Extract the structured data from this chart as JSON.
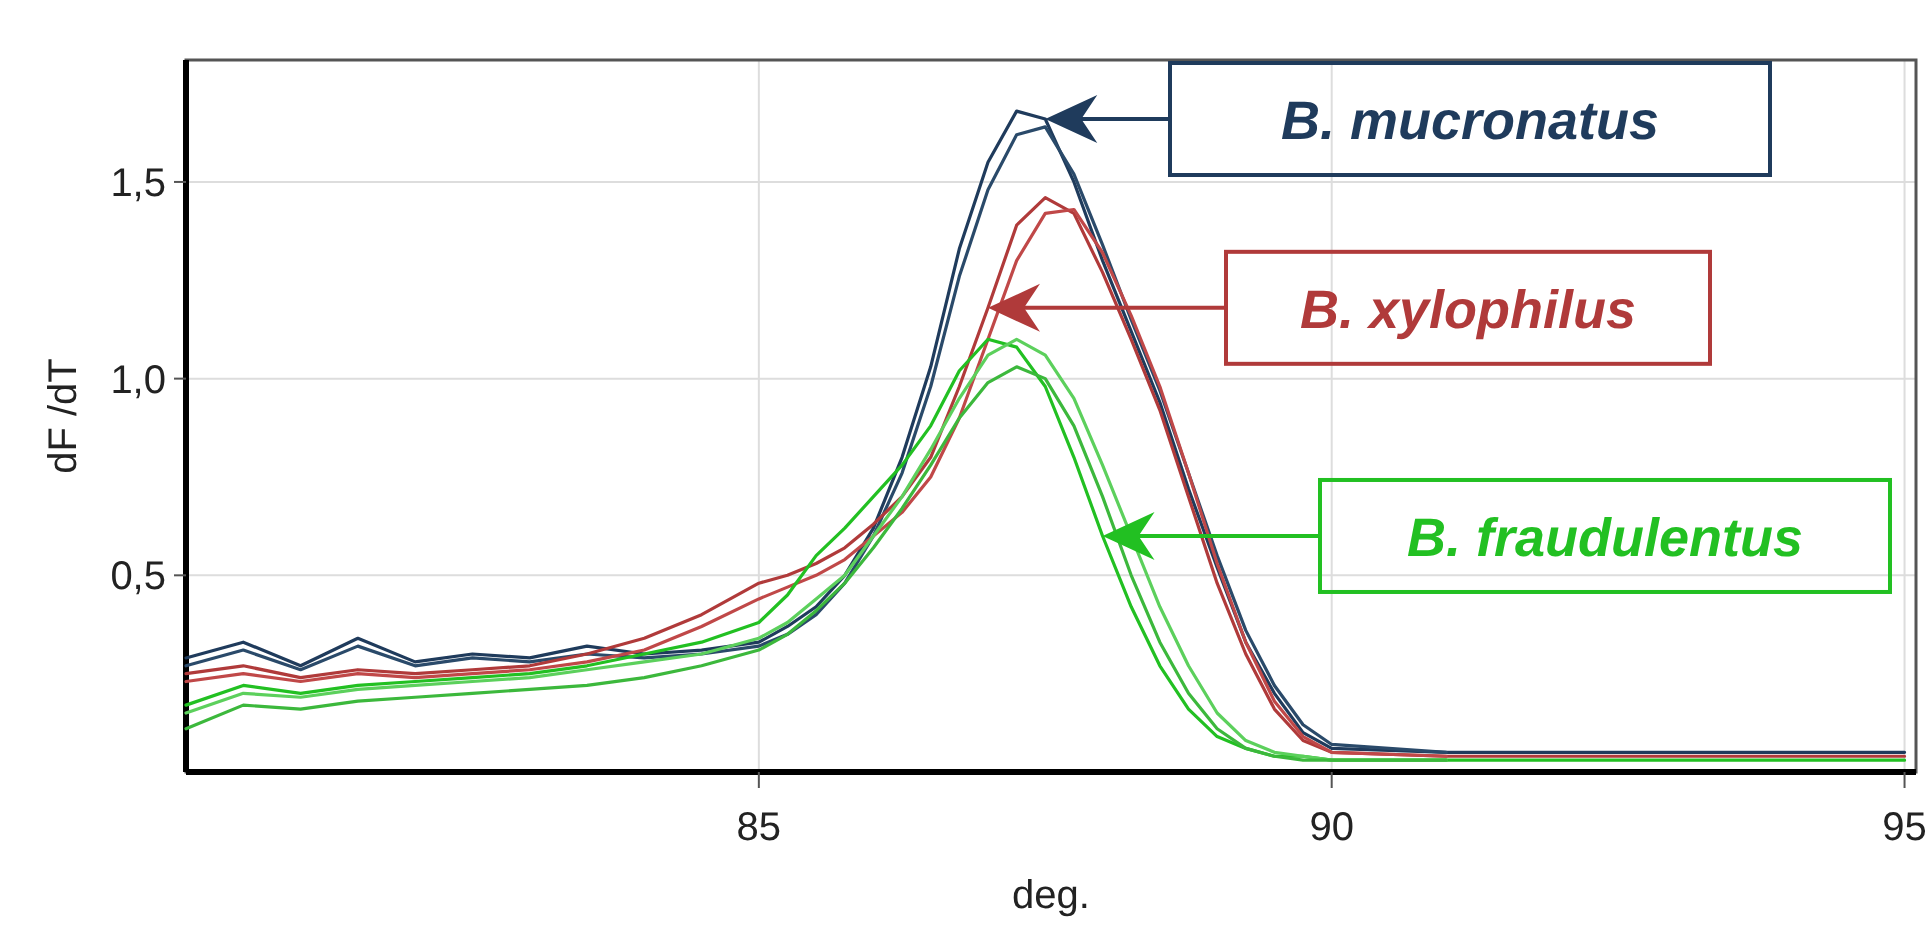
{
  "chart_data": {
    "type": "line",
    "xlabel": "deg.",
    "ylabel": "dF /dT",
    "xlim": [
      80,
      95.1
    ],
    "ylim": [
      0,
      1.81
    ],
    "xticks": [
      85,
      90,
      95
    ],
    "yticks": [
      {
        "value": 0.5,
        "label": "0,5"
      },
      {
        "value": 1.0,
        "label": "1,0"
      },
      {
        "value": 1.5,
        "label": "1,5"
      }
    ],
    "grid": true,
    "legend": "right",
    "marker": "none",
    "line_style": "solid",
    "x": [
      80,
      80.5,
      81,
      81.5,
      82,
      82.5,
      83,
      83.5,
      84,
      84.5,
      85,
      85.25,
      85.5,
      85.75,
      86,
      86.25,
      86.5,
      86.75,
      87,
      87.25,
      87.5,
      87.75,
      88,
      88.25,
      88.5,
      88.75,
      89,
      89.25,
      89.5,
      89.75,
      90,
      91,
      92,
      93,
      94,
      95
    ],
    "series": [
      {
        "name": "B. mucronatus",
        "color": "#1f3b5c",
        "values": [
          0.29,
          0.33,
          0.27,
          0.34,
          0.28,
          0.3,
          0.29,
          0.32,
          0.3,
          0.31,
          0.33,
          0.37,
          0.42,
          0.5,
          0.62,
          0.8,
          1.03,
          1.33,
          1.55,
          1.68,
          1.66,
          1.5,
          1.3,
          1.12,
          0.94,
          0.72,
          0.52,
          0.33,
          0.2,
          0.1,
          0.06,
          0.05,
          0.05,
          0.05,
          0.05,
          0.05
        ]
      },
      {
        "color": "#2a4a6a",
        "values": [
          0.27,
          0.31,
          0.26,
          0.32,
          0.27,
          0.29,
          0.28,
          0.3,
          0.29,
          0.3,
          0.32,
          0.35,
          0.4,
          0.48,
          0.6,
          0.76,
          0.98,
          1.26,
          1.48,
          1.62,
          1.64,
          1.52,
          1.34,
          1.15,
          0.97,
          0.76,
          0.55,
          0.36,
          0.22,
          0.12,
          0.07,
          0.05,
          null,
          null,
          null,
          null
        ]
      },
      {
        "name": "B. xylophilus",
        "color": "#b03a3a",
        "values": [
          0.25,
          0.27,
          0.24,
          0.26,
          0.25,
          0.26,
          0.27,
          0.3,
          0.34,
          0.4,
          0.48,
          0.5,
          0.53,
          0.57,
          0.63,
          0.7,
          0.8,
          0.98,
          1.18,
          1.39,
          1.46,
          1.42,
          1.27,
          1.1,
          0.92,
          0.7,
          0.48,
          0.3,
          0.16,
          0.08,
          0.05,
          0.04,
          0.04,
          0.04,
          0.04,
          0.04
        ]
      },
      {
        "color": "#c04848",
        "values": [
          0.23,
          0.25,
          0.23,
          0.25,
          0.24,
          0.25,
          0.26,
          0.28,
          0.31,
          0.37,
          0.44,
          0.47,
          0.5,
          0.54,
          0.6,
          0.66,
          0.75,
          0.9,
          1.1,
          1.3,
          1.42,
          1.43,
          1.32,
          1.16,
          0.98,
          0.76,
          0.53,
          0.33,
          0.18,
          0.09,
          0.05,
          0.04,
          null,
          null,
          null,
          null
        ]
      },
      {
        "name": "B. fraudulentus",
        "color": "#22c022",
        "values": [
          0.17,
          0.22,
          0.2,
          0.22,
          0.23,
          0.24,
          0.25,
          0.27,
          0.3,
          0.33,
          0.38,
          0.45,
          0.55,
          0.62,
          0.7,
          0.78,
          0.88,
          1.02,
          1.1,
          1.08,
          0.98,
          0.8,
          0.6,
          0.42,
          0.27,
          0.16,
          0.09,
          0.06,
          0.04,
          0.04,
          0.03,
          0.03,
          0.03,
          0.03,
          0.03,
          0.03
        ]
      },
      {
        "color": "#5cd05c",
        "values": [
          0.15,
          0.2,
          0.19,
          0.21,
          0.22,
          0.23,
          0.24,
          0.26,
          0.28,
          0.3,
          0.34,
          0.38,
          0.44,
          0.5,
          0.6,
          0.7,
          0.82,
          0.95,
          1.06,
          1.1,
          1.06,
          0.95,
          0.78,
          0.6,
          0.42,
          0.27,
          0.15,
          0.08,
          0.05,
          0.04,
          0.03,
          0.03,
          null,
          null,
          null,
          null
        ]
      },
      {
        "color": "#3cb83c",
        "values": [
          0.11,
          0.17,
          0.16,
          0.18,
          0.19,
          0.2,
          0.21,
          0.22,
          0.24,
          0.27,
          0.31,
          0.35,
          0.41,
          0.48,
          0.57,
          0.67,
          0.78,
          0.9,
          0.99,
          1.03,
          1.0,
          0.88,
          0.7,
          0.5,
          0.33,
          0.2,
          0.11,
          0.06,
          0.04,
          0.03,
          0.03,
          0.03,
          null,
          null,
          null,
          null
        ]
      }
    ]
  }
}
